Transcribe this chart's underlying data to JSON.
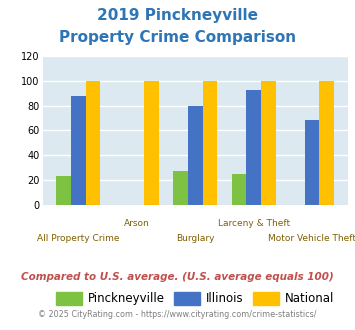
{
  "title_line1": "2019 Pinckneyville",
  "title_line2": "Property Crime Comparison",
  "categories": [
    "All Property Crime",
    "Arson",
    "Burglary",
    "Larceny & Theft",
    "Motor Vehicle Theft"
  ],
  "cat_labels_row1": [
    "",
    "Arson",
    "",
    "Larceny & Theft",
    ""
  ],
  "cat_labels_row2": [
    "All Property Crime",
    "",
    "Burglary",
    "",
    "Motor Vehicle Theft"
  ],
  "pinckneyville": [
    23,
    0,
    27,
    25,
    0
  ],
  "illinois": [
    88,
    0,
    80,
    93,
    68
  ],
  "national": [
    100,
    100,
    100,
    100,
    100
  ],
  "color_pinckneyville": "#7dc242",
  "color_illinois": "#4472c4",
  "color_national": "#ffc000",
  "bar_background": "#dce9f0",
  "ylim": [
    0,
    120
  ],
  "yticks": [
    0,
    20,
    40,
    60,
    80,
    100,
    120
  ],
  "grid_color": "#ffffff",
  "note": "Compared to U.S. average. (U.S. average equals 100)",
  "footer": "© 2025 CityRating.com - https://www.cityrating.com/crime-statistics/",
  "title_color": "#2e75b6",
  "note_color": "#c0504d",
  "footer_color": "#7f7f7f",
  "xlabel_color": "#7f6000"
}
